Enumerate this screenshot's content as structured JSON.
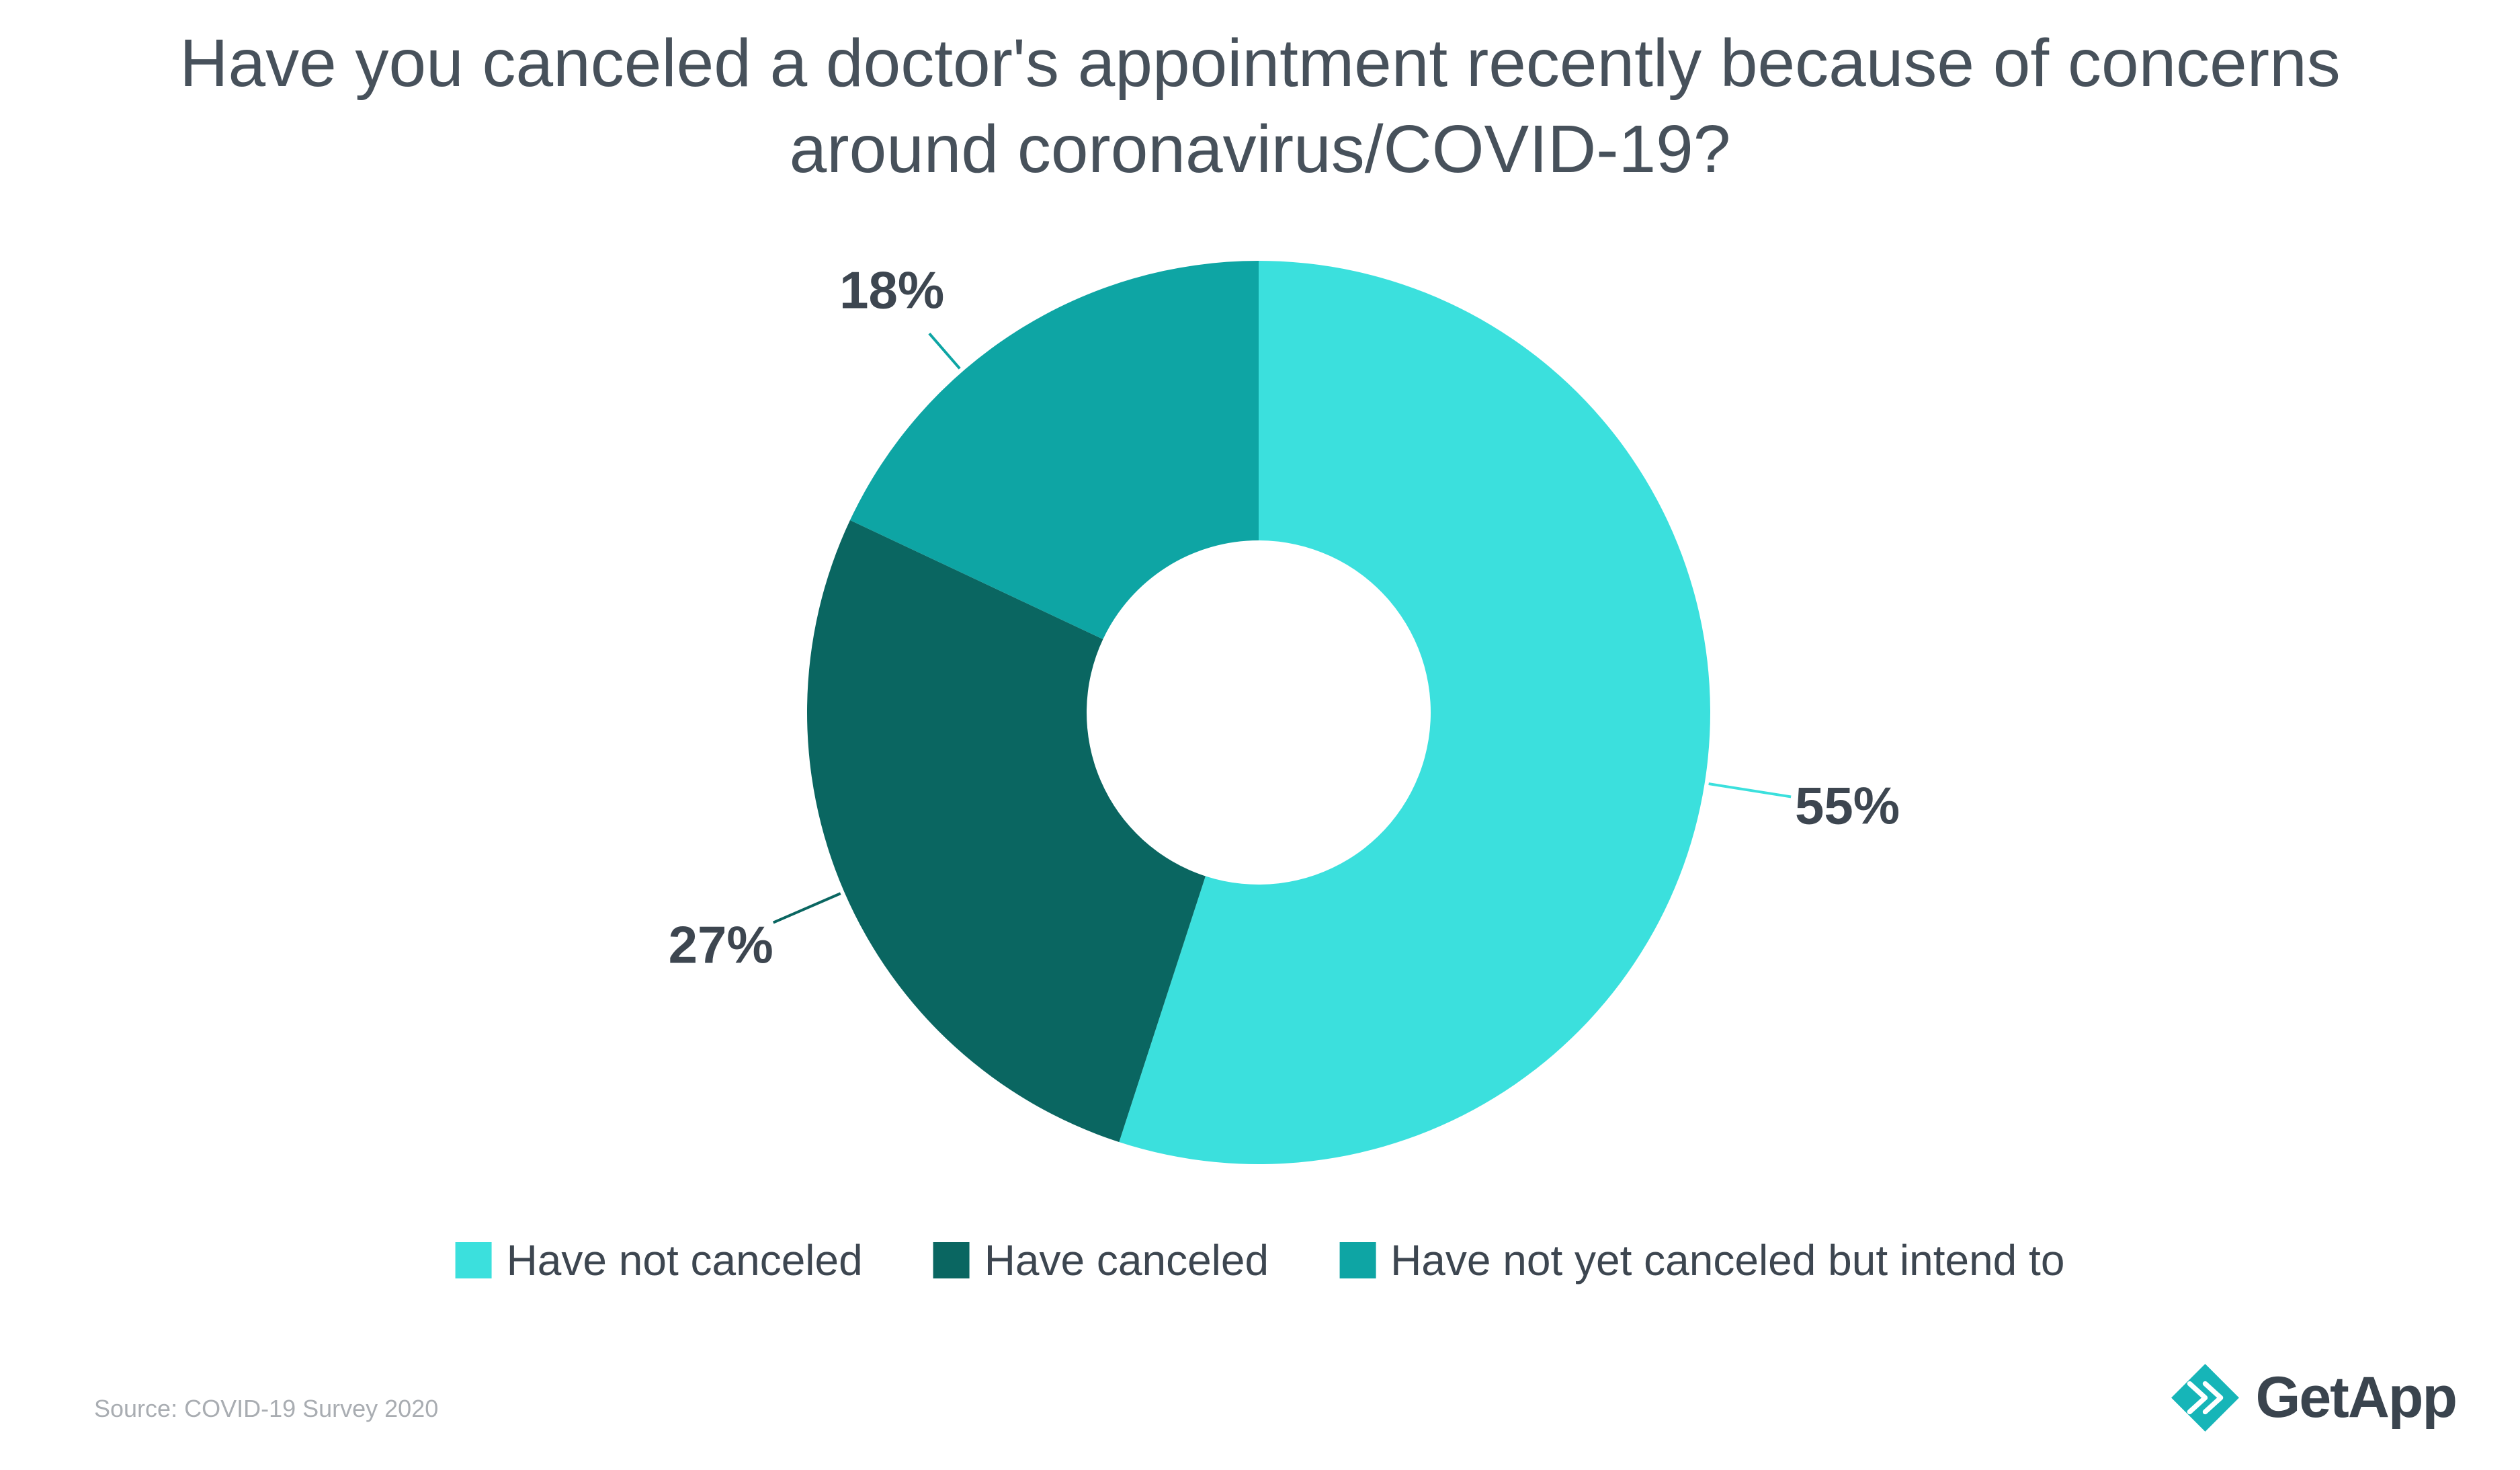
{
  "chart_data": {
    "type": "pie",
    "donut": true,
    "title": "Have you canceled a doctor's appointment recently because of concerns around coronavirus/COVID-19?",
    "direction": "clockwise",
    "start_angle_deg": 0,
    "legend_position": "bottom",
    "slices": [
      {
        "label": "Have not canceled",
        "value": 55,
        "pct_label": "55%",
        "color": "#3BE0DD"
      },
      {
        "label": "Have canceled",
        "value": 27,
        "pct_label": "27%",
        "color": "#0A6661"
      },
      {
        "label": "Have not yet canceled but intend to",
        "value": 18,
        "pct_label": "18%",
        "color": "#0EA5A4"
      }
    ]
  },
  "source": "Source: COVID-19 Survey 2020",
  "logo": {
    "text": "GetApp",
    "accent_color": "#16B5B8"
  }
}
